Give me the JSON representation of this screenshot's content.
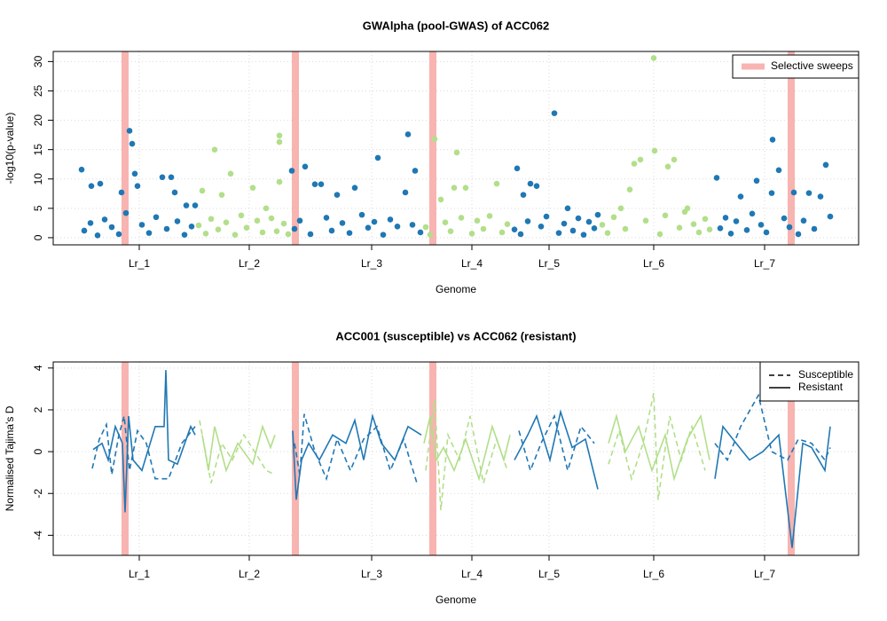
{
  "chart_data": [
    {
      "type": "scatter",
      "title": "GWAlpha (pool-GWAS) of ACC062",
      "xlabel": "Genome",
      "ylabel": "-log10(p-value)",
      "xlim": [
        0,
        908
      ],
      "ylim": [
        -1.22,
        31.72
      ],
      "xticks": [
        {
          "value": 97,
          "label": "Lr_1"
        },
        {
          "value": 221,
          "label": "Lr_2"
        },
        {
          "value": 359,
          "label": "Lr_3"
        },
        {
          "value": 472,
          "label": "Lr_4"
        },
        {
          "value": 559,
          "label": "Lr_5"
        },
        {
          "value": 677,
          "label": "Lr_6"
        },
        {
          "value": 802,
          "label": "Lr_7"
        }
      ],
      "yticks": [
        0,
        5,
        10,
        15,
        20,
        25,
        30
      ],
      "grid": true,
      "legend_position": "top-right",
      "sweeps": {
        "label": "Selective sweeps",
        "color": "#f8b4b0",
        "x": [
          81,
          273,
          428,
          832
        ]
      },
      "series": [
        {
          "color": "#1f78b4",
          "x": [
            32,
            35,
            42,
            43,
            50,
            53,
            58,
            66,
            74,
            77,
            82,
            86,
            89,
            92,
            95,
            100,
            108,
            116,
            123,
            128,
            133,
            137,
            140,
            148,
            150,
            156,
            160
          ],
          "values": [
            11.6,
            1.2,
            2.5,
            8.8,
            0.4,
            9.2,
            3.1,
            1.8,
            0.6,
            7.7,
            4.2,
            18.2,
            16,
            10.9,
            8.8,
            2.2,
            0.8,
            3.5,
            10.3,
            1.5,
            10.3,
            7.7,
            2.8,
            0.5,
            5.5,
            1.9,
            5.5
          ]
        },
        {
          "color": "#b2df8a",
          "x": [
            164,
            168,
            172,
            178,
            182,
            186,
            190,
            195,
            200,
            205,
            212,
            218,
            225,
            230,
            236,
            240,
            246,
            252,
            255,
            255,
            255,
            260,
            265
          ],
          "values": [
            2.1,
            8,
            0.7,
            3.2,
            15,
            1.4,
            7.3,
            2.6,
            10.9,
            0.5,
            3.8,
            1.7,
            8.5,
            2.9,
            0.9,
            5,
            3.3,
            1.1,
            17.4,
            16.3,
            9.5,
            2.4,
            0.6
          ]
        },
        {
          "color": "#1f78b4",
          "x": [
            269,
            272,
            278,
            284,
            290,
            295,
            302,
            308,
            314,
            320,
            326,
            334,
            340,
            348,
            355,
            362,
            366,
            372,
            380,
            388,
            397,
            400,
            405,
            408,
            414
          ],
          "values": [
            11.4,
            1.5,
            2.9,
            12.1,
            0.6,
            9.1,
            9.1,
            3.4,
            1.2,
            7.3,
            2.5,
            0.8,
            8.5,
            3.9,
            1.7,
            2.7,
            13.6,
            0.5,
            3.1,
            1.9,
            7.7,
            17.6,
            2.2,
            11.4,
            0.9
          ]
        },
        {
          "color": "#b2df8a",
          "x": [
            420,
            425,
            430,
            437,
            442,
            448,
            452,
            455,
            460,
            465,
            472,
            478,
            485,
            492,
            500,
            506,
            512
          ],
          "values": [
            1.8,
            0.5,
            16.8,
            6.5,
            2.6,
            1.1,
            8.5,
            14.5,
            3.4,
            8.5,
            0.7,
            2.9,
            1.5,
            3.7,
            9.2,
            0.9,
            2.3
          ]
        },
        {
          "color": "#1f78b4",
          "x": [
            520,
            523,
            527,
            530,
            535,
            538,
            545,
            550,
            556,
            565,
            570,
            576,
            580,
            586,
            592,
            598,
            604,
            610,
            614
          ],
          "values": [
            1.4,
            11.8,
            0.6,
            7.3,
            2.8,
            9.2,
            8.8,
            1.9,
            3.6,
            21.2,
            0.8,
            2.4,
            5,
            1.2,
            3.3,
            0.5,
            2.7,
            1.6,
            3.9
          ]
        },
        {
          "color": "#b2df8a",
          "x": [
            619,
            625,
            632,
            640,
            645,
            650,
            655,
            662,
            668,
            677,
            678,
            684,
            690,
            693,
            700,
            706,
            712,
            715,
            722,
            728,
            735,
            740
          ],
          "values": [
            2.2,
            0.8,
            3.5,
            5,
            1.5,
            8.2,
            12.6,
            13.3,
            2.9,
            30.6,
            14.8,
            0.6,
            3.8,
            12.1,
            13.3,
            1.7,
            4.4,
            5,
            2.3,
            0.9,
            3.2,
            1.4
          ]
        },
        {
          "color": "#1f78b4",
          "x": [
            748,
            752,
            758,
            764,
            770,
            775,
            782,
            788,
            793,
            798,
            804,
            810,
            811,
            818,
            824,
            830,
            835,
            840,
            846,
            852,
            858,
            865,
            871,
            876
          ],
          "values": [
            10.2,
            1.6,
            3.4,
            0.7,
            2.8,
            7,
            1.3,
            4.1,
            9.7,
            2.2,
            0.9,
            7.6,
            16.7,
            11.5,
            3.3,
            1.8,
            7.7,
            0.6,
            2.9,
            7.6,
            1.5,
            7,
            12.4,
            3.6
          ]
        }
      ]
    },
    {
      "type": "line",
      "title": "ACC001 (susceptible) vs ACC062 (resistant)",
      "xlabel": "Genome",
      "ylabel": "Normalised Tajima's D",
      "xlim": [
        0,
        908
      ],
      "ylim": [
        -4.96,
        4.29
      ],
      "xticks": [
        {
          "value": 97,
          "label": "Lr_1"
        },
        {
          "value": 221,
          "label": "Lr_2"
        },
        {
          "value": 359,
          "label": "Lr_3"
        },
        {
          "value": 472,
          "label": "Lr_4"
        },
        {
          "value": 559,
          "label": "Lr_5"
        },
        {
          "value": 677,
          "label": "Lr_6"
        },
        {
          "value": 802,
          "label": "Lr_7"
        }
      ],
      "yticks": [
        -4,
        -2,
        0,
        2,
        4
      ],
      "grid": true,
      "legend_position": "top-right",
      "legend": [
        {
          "label": "Susceptible",
          "linestyle": "dashed"
        },
        {
          "label": "Resistant",
          "linestyle": "solid"
        }
      ],
      "sweeps": {
        "color": "#f8b4b0",
        "x": [
          81,
          273,
          428,
          832
        ]
      },
      "series": [
        {
          "color": "#1f78b4",
          "linestyle": "solid",
          "x": [
            45,
            55,
            62,
            70,
            78,
            81,
            85,
            90,
            100,
            115,
            125,
            127,
            130,
            140,
            155,
            160
          ],
          "values": [
            0.1,
            0.4,
            -0.4,
            1.2,
            0.4,
            -2.9,
            1.7,
            -0.4,
            -0.9,
            1.2,
            1.2,
            3.9,
            -0.4,
            -0.6,
            1.2,
            0.8
          ]
        },
        {
          "color": "#1f78b4",
          "linestyle": "dashed",
          "x": [
            44,
            52,
            60,
            66,
            74,
            80,
            86,
            95,
            105,
            115,
            130,
            145,
            160
          ],
          "values": [
            -0.8,
            0.6,
            1.3,
            -1.1,
            0.8,
            1.7,
            -0.9,
            1,
            0.4,
            -1.3,
            -1.3,
            0.4,
            1.2
          ]
        },
        {
          "color": "#b2df8a",
          "linestyle": "solid",
          "x": [
            168,
            175,
            182,
            195,
            208,
            225,
            236,
            245,
            250
          ],
          "values": [
            0.8,
            -0.9,
            1.2,
            -0.9,
            0.4,
            -0.6,
            1.2,
            0.2,
            0.8
          ]
        },
        {
          "color": "#b2df8a",
          "linestyle": "dashed",
          "x": [
            165,
            178,
            190,
            202,
            215,
            230,
            240,
            250
          ],
          "values": [
            1.5,
            -1.5,
            0.4,
            -0.4,
            0.8,
            -0.2,
            -0.9,
            -1.1
          ]
        },
        {
          "color": "#1f78b4",
          "linestyle": "solid",
          "x": [
            270,
            274,
            280,
            288,
            300,
            315,
            330,
            340,
            350,
            360,
            370,
            385,
            400,
            415
          ],
          "values": [
            1,
            -2.3,
            -0.4,
            0.4,
            -0.4,
            0.8,
            0.4,
            1.5,
            -0.4,
            1.7,
            0.4,
            -0.4,
            1.2,
            0.8
          ]
        },
        {
          "color": "#1f78b4",
          "linestyle": "dashed",
          "x": [
            272,
            278,
            283,
            295,
            308,
            320,
            335,
            350,
            365,
            380,
            395,
            410
          ],
          "values": [
            0.4,
            -1.1,
            1.8,
            0,
            -1.3,
            0.6,
            -0.9,
            0.6,
            1.2,
            -0.9,
            0.6,
            -1.5
          ]
        },
        {
          "color": "#b2df8a",
          "linestyle": "solid",
          "x": [
            418,
            425,
            432,
            440,
            452,
            465,
            480,
            495,
            508,
            515
          ],
          "values": [
            0.4,
            1.7,
            -0.4,
            0.2,
            -0.9,
            0.6,
            -1.3,
            1.2,
            -0.4,
            0.8
          ]
        },
        {
          "color": "#b2df8a",
          "linestyle": "dashed",
          "x": [
            420,
            430,
            437,
            445,
            458,
            470,
            485,
            500,
            512
          ],
          "values": [
            -0.9,
            2.5,
            -2.8,
            0.8,
            -0.4,
            1.7,
            -1.5,
            0.6,
            -0.9
          ]
        },
        {
          "color": "#1f78b4",
          "linestyle": "solid",
          "x": [
            520,
            535,
            545,
            560,
            572,
            585,
            600,
            614
          ],
          "values": [
            -0.4,
            0.8,
            1.7,
            -0.4,
            1.9,
            0.2,
            0.6,
            -1.8
          ]
        },
        {
          "color": "#1f78b4",
          "linestyle": "dashed",
          "x": [
            525,
            538,
            550,
            565,
            580,
            595,
            610
          ],
          "values": [
            1,
            -0.9,
            0.4,
            1.7,
            -0.9,
            1.2,
            0.4
          ]
        },
        {
          "color": "#b2df8a",
          "linestyle": "solid",
          "x": [
            626,
            635,
            645,
            660,
            675,
            690,
            700,
            715,
            730,
            740
          ],
          "values": [
            0.4,
            1.7,
            0,
            1.2,
            -0.9,
            0.8,
            -1.3,
            0.6,
            1.7,
            -0.4
          ]
        },
        {
          "color": "#b2df8a",
          "linestyle": "dashed",
          "x": [
            626,
            638,
            652,
            665,
            677,
            682,
            695,
            708,
            720,
            735
          ],
          "values": [
            -0.6,
            1,
            -1.3,
            0.4,
            2.8,
            -2.3,
            1.7,
            -0.4,
            1.2,
            -0.9
          ]
        },
        {
          "color": "#1f78b4",
          "linestyle": "solid",
          "x": [
            746,
            755,
            770,
            785,
            800,
            818,
            833,
            845,
            855,
            870,
            876
          ],
          "values": [
            -1.3,
            1.2,
            0.4,
            -0.4,
            0,
            0.8,
            -4.6,
            0.4,
            0.2,
            -0.9,
            1.2
          ]
        },
        {
          "color": "#1f78b4",
          "linestyle": "dashed",
          "x": [
            746,
            760,
            775,
            795,
            810,
            828,
            840,
            855,
            870,
            876
          ],
          "values": [
            0.4,
            -0.4,
            1.2,
            2.7,
            0,
            -0.4,
            0.6,
            0.4,
            -0.4,
            0.2
          ]
        }
      ]
    }
  ]
}
